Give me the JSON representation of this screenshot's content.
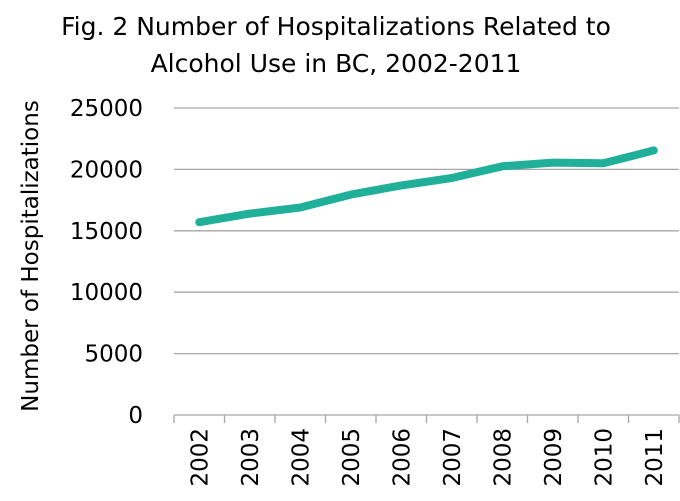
{
  "chart_data": {
    "type": "line",
    "title_lines": [
      "Fig. 2 Number of Hospitalizations Related to",
      "Alcohol Use in BC, 2002-2011"
    ],
    "xlabel": "",
    "ylabel": "Number of Hospitalizations",
    "categories": [
      "2002",
      "2003",
      "2004",
      "2005",
      "2006",
      "2007",
      "2008",
      "2009",
      "2010",
      "2011"
    ],
    "series": [
      {
        "values": [
          15700,
          16400,
          16900,
          17950,
          18700,
          19300,
          20250,
          20550,
          20500,
          21550
        ],
        "color": "#20b09a"
      }
    ],
    "ylim": [
      0,
      25000
    ],
    "yticks": [
      0,
      5000,
      10000,
      15000,
      20000,
      25000
    ],
    "ytick_labels": [
      "0",
      "5000",
      "10000",
      "15000",
      "20000",
      "25000"
    ],
    "grid": "horizontal",
    "gridline_color": "#a6a6a6",
    "legend": "none"
  }
}
